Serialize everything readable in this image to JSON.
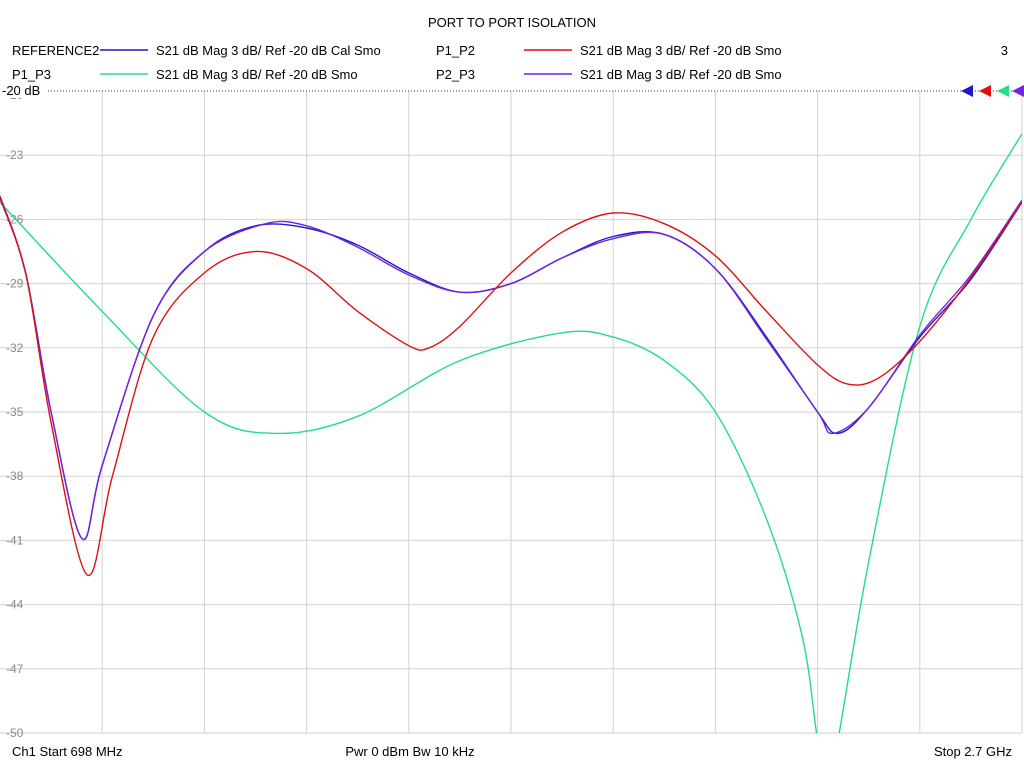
{
  "chart_data": {
    "type": "line",
    "title": "PORT TO PORT ISOLATION",
    "ref_label": "-20 dB",
    "ylim": [
      -50,
      -20
    ],
    "y_ticks": [
      "-20",
      "-23",
      "-26",
      "-29",
      "-32",
      "-35",
      "-38",
      "-41",
      "-44",
      "-47",
      "-50"
    ],
    "x_divisions": 10,
    "grid": true,
    "legend_position": "top",
    "footer": {
      "start": "Ch1  Start  698 MHz",
      "power": "Pwr  0 dBm  Bw  10 kHz",
      "stop": "Stop  2.7 GHz"
    },
    "channel_count": "3",
    "series": [
      {
        "name": "REFERENCE2",
        "desc": "S21  dB Mag  3 dB/ Ref -20 dB  Cal Smo",
        "color": "#1a1acc",
        "values": [
          [
            0,
            -25.0
          ],
          [
            0.25,
            -28.5
          ],
          [
            0.5,
            -35.0
          ],
          [
            0.8,
            -40.9
          ],
          [
            1.0,
            -37.5
          ],
          [
            1.5,
            -30.5
          ],
          [
            2.0,
            -27.5
          ],
          [
            2.5,
            -26.3
          ],
          [
            3.0,
            -26.4
          ],
          [
            3.5,
            -27.2
          ],
          [
            4.0,
            -28.5
          ],
          [
            4.5,
            -29.4
          ],
          [
            5.0,
            -29.0
          ],
          [
            5.5,
            -27.8
          ],
          [
            6.0,
            -26.8
          ],
          [
            6.5,
            -26.7
          ],
          [
            7.0,
            -28.3
          ],
          [
            7.5,
            -31.5
          ],
          [
            8.0,
            -35.0
          ],
          [
            8.2,
            -36.0
          ],
          [
            8.5,
            -34.8
          ],
          [
            9.0,
            -31.5
          ],
          [
            9.5,
            -28.8
          ],
          [
            10.0,
            -25.2
          ]
        ]
      },
      {
        "name": "P1_P2",
        "desc": "S21  dB Mag  3 dB/ Ref -20 dB  Smo",
        "color": "#dd1111",
        "values": [
          [
            0,
            -25.0
          ],
          [
            0.25,
            -28.5
          ],
          [
            0.5,
            -35.5
          ],
          [
            0.85,
            -42.6
          ],
          [
            1.1,
            -38.0
          ],
          [
            1.5,
            -31.5
          ],
          [
            2.0,
            -28.5
          ],
          [
            2.5,
            -27.5
          ],
          [
            3.0,
            -28.3
          ],
          [
            3.5,
            -30.3
          ],
          [
            4.0,
            -31.9
          ],
          [
            4.2,
            -32.0
          ],
          [
            4.5,
            -31.0
          ],
          [
            5.0,
            -28.5
          ],
          [
            5.5,
            -26.6
          ],
          [
            6.0,
            -25.7
          ],
          [
            6.5,
            -26.2
          ],
          [
            7.0,
            -27.7
          ],
          [
            7.5,
            -30.3
          ],
          [
            8.0,
            -32.8
          ],
          [
            8.3,
            -33.7
          ],
          [
            8.6,
            -33.4
          ],
          [
            9.0,
            -31.7
          ],
          [
            9.5,
            -28.7
          ],
          [
            10.0,
            -25.2
          ]
        ]
      },
      {
        "name": "P1_P3",
        "desc": "S21  dB Mag  3 dB/ Ref -20 dB  Smo",
        "color": "#22dd88",
        "values": [
          [
            0,
            -25.2
          ],
          [
            1.0,
            -30.3
          ],
          [
            2.0,
            -35.0
          ],
          [
            2.7,
            -36.0
          ],
          [
            3.5,
            -35.2
          ],
          [
            4.5,
            -32.6
          ],
          [
            5.5,
            -31.3
          ],
          [
            6.0,
            -31.5
          ],
          [
            6.5,
            -32.6
          ],
          [
            7.0,
            -35.0
          ],
          [
            7.5,
            -40.0
          ],
          [
            7.85,
            -45.5
          ],
          [
            8.0,
            -50.3
          ],
          [
            8.1,
            -52.0
          ],
          [
            8.2,
            -50.3
          ],
          [
            8.5,
            -42.0
          ],
          [
            9.0,
            -31.0
          ],
          [
            9.5,
            -26.0
          ],
          [
            10.0,
            -22.0
          ]
        ]
      },
      {
        "name": "P2_P3",
        "desc": "S21  dB Mag  3 dB/ Ref -20 dB  Smo",
        "color": "#7722dd",
        "values": [
          [
            0,
            -24.9
          ],
          [
            0.25,
            -28.5
          ],
          [
            0.5,
            -35.0
          ],
          [
            0.8,
            -40.9
          ],
          [
            1.0,
            -37.5
          ],
          [
            1.5,
            -30.5
          ],
          [
            2.0,
            -27.5
          ],
          [
            2.6,
            -26.2
          ],
          [
            3.0,
            -26.3
          ],
          [
            3.5,
            -27.3
          ],
          [
            4.0,
            -28.6
          ],
          [
            4.5,
            -29.4
          ],
          [
            5.0,
            -29.0
          ],
          [
            5.5,
            -27.8
          ],
          [
            6.0,
            -26.9
          ],
          [
            6.5,
            -26.7
          ],
          [
            7.0,
            -28.3
          ],
          [
            7.5,
            -31.6
          ],
          [
            8.0,
            -35.0
          ],
          [
            8.15,
            -36.0
          ],
          [
            8.5,
            -34.8
          ],
          [
            9.0,
            -31.4
          ],
          [
            9.5,
            -28.6
          ],
          [
            10.0,
            -25.1
          ]
        ]
      }
    ]
  }
}
